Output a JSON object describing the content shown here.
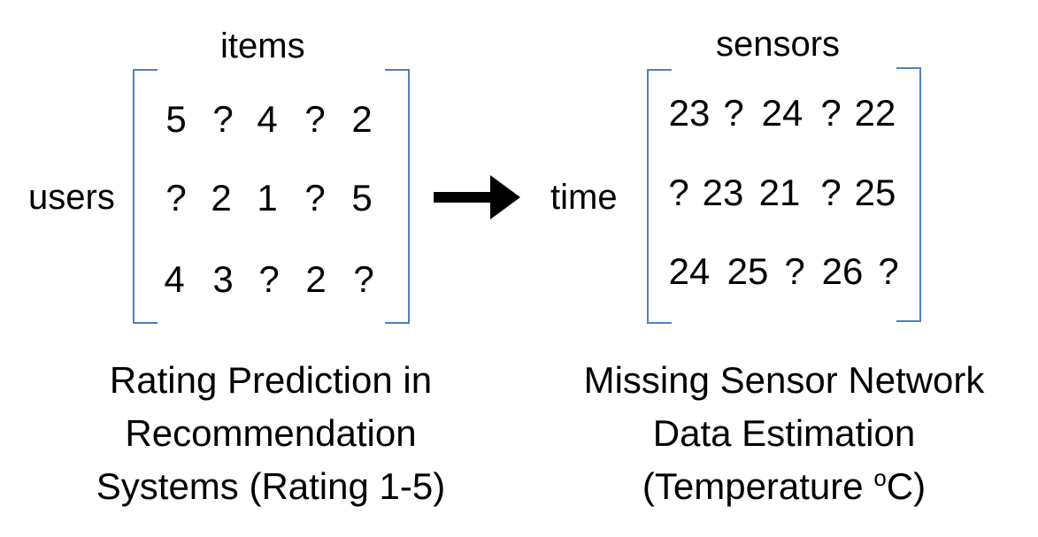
{
  "left": {
    "column_label": "items",
    "row_label": "users",
    "matrix": [
      [
        "5",
        "?",
        "4",
        "?",
        "2"
      ],
      [
        "?",
        "2",
        "1",
        "?",
        "5"
      ],
      [
        "4",
        "3",
        "?",
        "2",
        "?"
      ]
    ],
    "caption": [
      "Rating Prediction in",
      "Recommendation",
      "Systems (Rating 1-5)"
    ]
  },
  "right": {
    "column_label": "sensors",
    "row_label": "time",
    "matrix": [
      [
        "23",
        "?",
        "24",
        "?",
        "22"
      ],
      [
        "?",
        "23",
        "21",
        "?",
        "25"
      ],
      [
        "24",
        "25",
        "?",
        "26",
        "?"
      ]
    ],
    "caption": {
      "line1": "Missing Sensor Network",
      "line2": "Data Estimation",
      "line3_prefix": "(Temperature ",
      "line3_sup": "o",
      "line3_suffix": "C)"
    }
  },
  "arrow": {
    "icon": "right-arrow-icon",
    "color": "#000000"
  },
  "colors": {
    "bracket": "#4f81bd",
    "text": "#000000"
  }
}
